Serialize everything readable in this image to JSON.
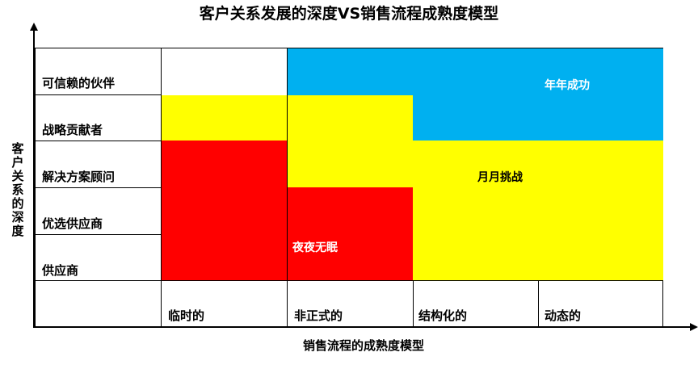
{
  "title": "客户关系发展的深度VS销售流程成熟度模型",
  "y_axis_label": "客户关系的深度",
  "x_axis_label": "销售流程的成熟度模型",
  "rows": [
    "可信赖的伙伴",
    "战略贡献者",
    "解决方案顾问",
    "优选供应商",
    "供应商"
  ],
  "columns": [
    "临时的",
    "非正式的",
    "结构化的",
    "动态的"
  ],
  "zones": {
    "success": {
      "label": "年年成功",
      "color": "#00b0f0",
      "text_color": "#ffffff"
    },
    "challenge": {
      "label": "月月挑战",
      "color": "#ffff00",
      "text_color": "#000000"
    },
    "sleepless": {
      "label": "夜夜无眠",
      "color": "#ff0000",
      "text_color": "#ffffff"
    }
  }
}
